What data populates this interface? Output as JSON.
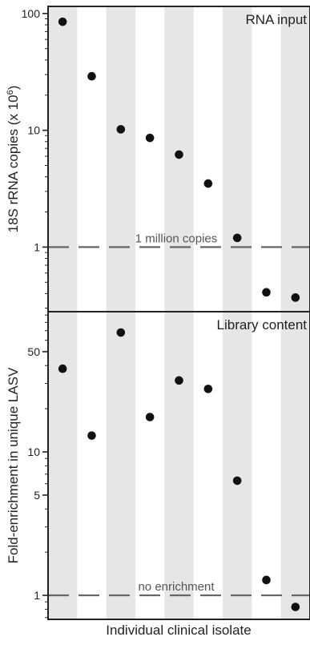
{
  "chart_data": [
    {
      "type": "scatter",
      "panel_label": "RNA input",
      "ylabel": "18S rRNA copies (x 10^6)",
      "ylabel_base": "18S rRNA copies (x 10",
      "ylabel_exp": "6",
      "ylabel_close": ")",
      "yscale": "log",
      "ylim": [
        0.28,
        115
      ],
      "yticks": [
        {
          "value": 100,
          "label": "100"
        },
        {
          "value": 10,
          "label": "10"
        },
        {
          "value": 1,
          "label": "1"
        }
      ],
      "reference_line": {
        "value": 1,
        "label": "1 million copies"
      },
      "values": [
        85,
        29,
        10.2,
        8.6,
        6.2,
        3.5,
        1.2,
        0.41,
        0.37
      ]
    },
    {
      "type": "scatter",
      "panel_label": "Library content",
      "ylabel": "Fold-enrichment in unique LASV",
      "yscale": "log",
      "ylim": [
        0.68,
        95
      ],
      "yticks": [
        {
          "value": 50,
          "label": "50"
        },
        {
          "value": 10,
          "label": "10"
        },
        {
          "value": 5,
          "label": "5"
        },
        {
          "value": 1,
          "label": "1"
        }
      ],
      "reference_line": {
        "value": 1,
        "label": "no enrichment"
      },
      "values": [
        38,
        13,
        68,
        17.5,
        31.5,
        27.5,
        6.3,
        1.28,
        0.83
      ]
    }
  ],
  "xlabel": "Individual clinical isolate",
  "n_isolates": 9,
  "colors": {
    "stripe": "#e5e6e5",
    "point": "#111111",
    "dash": "#666666",
    "frame": "#222222"
  }
}
